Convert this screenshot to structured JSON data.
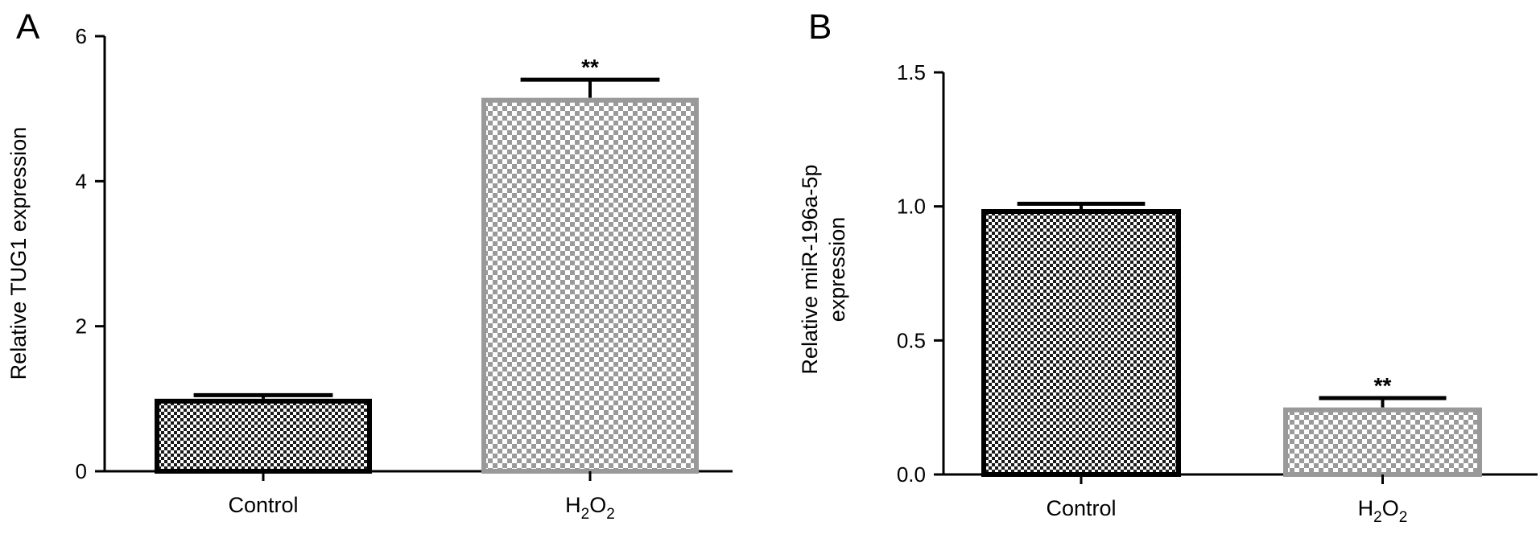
{
  "chart_data": [
    {
      "panel": "A",
      "type": "bar",
      "categories": [
        "Control",
        "H2O2"
      ],
      "values": [
        1.0,
        5.15
      ],
      "errors": [
        0.05,
        0.25
      ],
      "significance": [
        "",
        "**"
      ],
      "ylabel": "Relative TUG1 expression",
      "xlabel": "",
      "ylim": [
        0,
        6
      ],
      "yticks": [
        "0",
        "2",
        "4",
        "6"
      ],
      "bar_styles": [
        "dark-checker",
        "light-checker"
      ],
      "grid": false
    },
    {
      "panel": "B",
      "type": "bar",
      "categories": [
        "Control",
        "H2O2"
      ],
      "values": [
        0.99,
        0.25
      ],
      "errors": [
        0.02,
        0.035
      ],
      "significance": [
        "",
        "**"
      ],
      "ylabel_lines": [
        "Relative miR-196a-5p",
        "expression"
      ],
      "xlabel": "",
      "ylim": [
        0,
        1.5
      ],
      "yticks": [
        "0.0",
        "0.5",
        "1.0",
        "1.5"
      ],
      "bar_styles": [
        "dark-checker",
        "light-checker"
      ],
      "grid": false
    }
  ],
  "colors": {
    "dark_bar_outline": "#000000",
    "light_bar_outline": "#999999",
    "checker_dark": "#1a1a1a",
    "checker_light": "#9a9a9a"
  }
}
